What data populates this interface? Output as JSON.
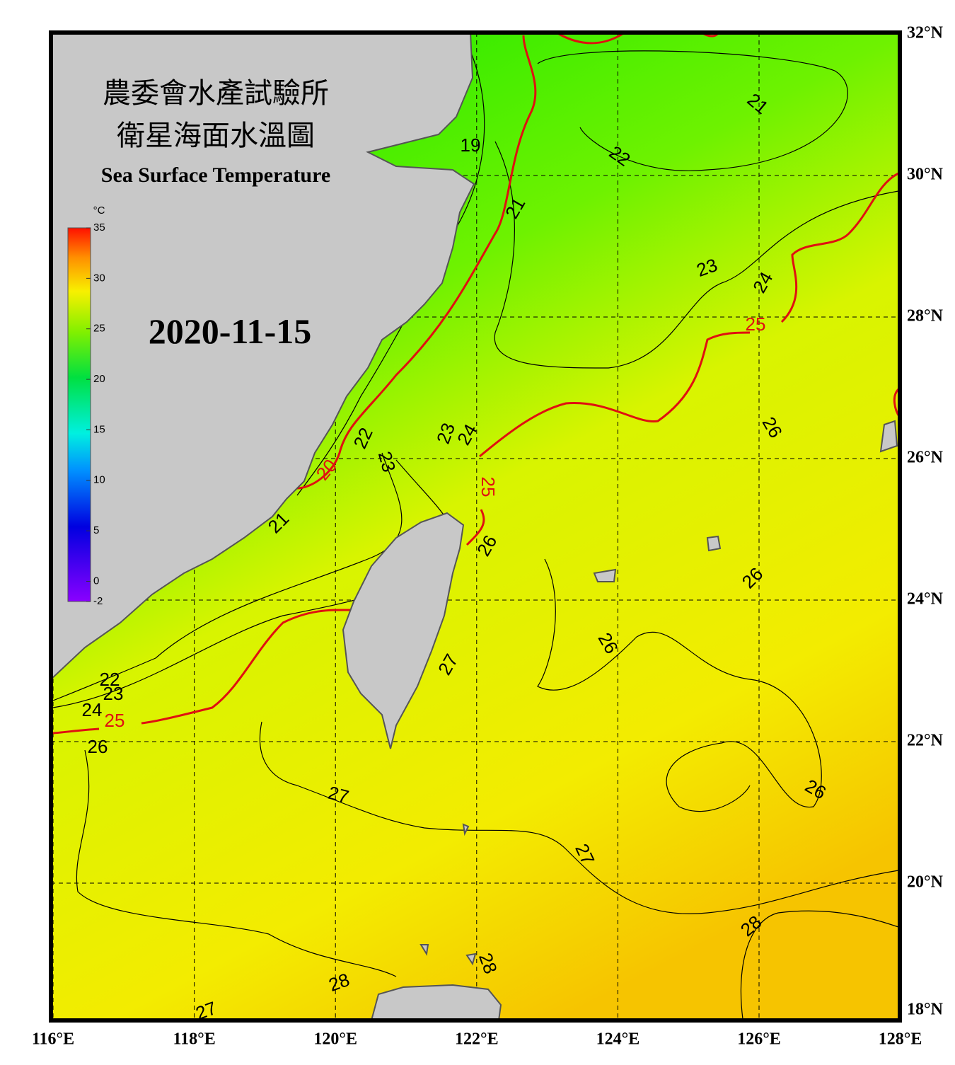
{
  "map": {
    "title_zh_1": "農委會水產試驗所",
    "title_zh_2": "衛星海面水溫圖",
    "title_en": "Sea Surface Temperature",
    "date": "2020-11-15",
    "lon_ticks": [
      {
        "value": 116,
        "label": "116°E"
      },
      {
        "value": 118,
        "label": "118°E"
      },
      {
        "value": 120,
        "label": "120°E"
      },
      {
        "value": 122,
        "label": "122°E"
      },
      {
        "value": 124,
        "label": "124°E"
      },
      {
        "value": 126,
        "label": "126°E"
      },
      {
        "value": 128,
        "label": "128°E"
      }
    ],
    "lat_ticks": [
      {
        "value": 32,
        "label": "32°N"
      },
      {
        "value": 30,
        "label": "30°N"
      },
      {
        "value": 28,
        "label": "28°N"
      },
      {
        "value": 26,
        "label": "26°N"
      },
      {
        "value": 24,
        "label": "24°N"
      },
      {
        "value": 22,
        "label": "22°N"
      },
      {
        "value": 20,
        "label": "20°N"
      },
      {
        "value": 18,
        "label": "18°N"
      }
    ],
    "colorbar": {
      "unit": "°C",
      "ticks": [
        35,
        30,
        25,
        20,
        15,
        10,
        5,
        0,
        -2
      ]
    },
    "contour_labels": [
      "19",
      "21",
      "22",
      "21",
      "23",
      "24",
      "25",
      "22",
      "23",
      "23",
      "24",
      "26",
      "20",
      "25",
      "21",
      "26",
      "26",
      "26",
      "27",
      "22",
      "23",
      "24",
      "25",
      "26",
      "27",
      "26",
      "27",
      "28",
      "28",
      "28",
      "27"
    ]
  }
}
